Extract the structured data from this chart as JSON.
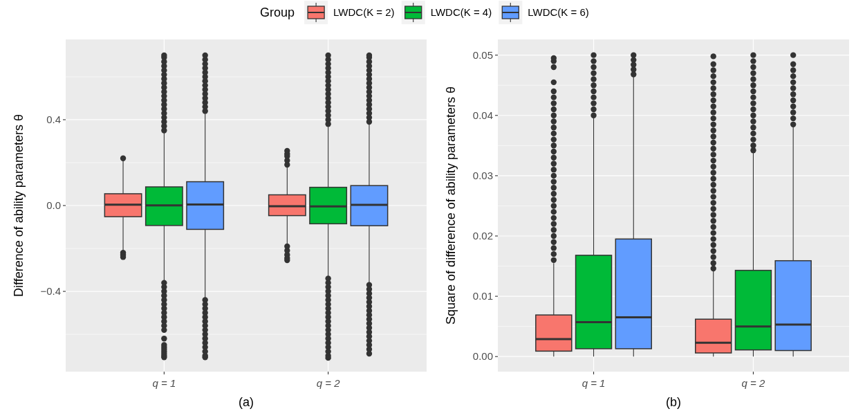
{
  "chart_data": [
    {
      "type": "box",
      "xlabel": "(a)",
      "ylabel": "Difference of ability parameters θ",
      "legend": "top",
      "legend_title": "Group",
      "grid": true,
      "categories": [
        "q = 1",
        "q = 2"
      ],
      "ylim": [
        -0.774,
        0.774
      ],
      "yticks": [
        -0.4,
        {
          "value": 0,
          "label": "0.0"
        },
        0.4
      ],
      "series": [
        {
          "name": "LWDC(K = 2)",
          "color": "#f8766d",
          "boxes": [
            {
              "low": -0.21,
              "q1": -0.052,
              "median": 0.004,
              "q3": 0.055,
              "high": 0.21,
              "outliers": [
                0.22,
                -0.22,
                -0.23,
                -0.24
              ]
            },
            {
              "low": -0.185,
              "q1": -0.047,
              "median": -0.003,
              "q3": 0.05,
              "high": 0.18,
              "outliers": [
                0.19,
                0.21,
                0.23,
                0.24,
                0.255,
                -0.19,
                -0.21,
                -0.23,
                -0.245,
                -0.255
              ]
            }
          ]
        },
        {
          "name": "LWDC(K = 4)",
          "color": "#00ba38",
          "boxes": [
            {
              "low": -0.357,
              "q1": -0.093,
              "median": 0.001,
              "q3": 0.087,
              "high": 0.344,
              "outliers": [
                0.35,
                0.37,
                0.39,
                0.41,
                0.43,
                0.45,
                0.47,
                0.49,
                0.51,
                0.53,
                0.55,
                0.57,
                0.59,
                0.61,
                0.63,
                0.65,
                0.67,
                0.69,
                0.7,
                -0.36,
                -0.38,
                -0.4,
                -0.42,
                -0.44,
                -0.46,
                -0.48,
                -0.5,
                -0.52,
                -0.54,
                -0.56,
                -0.58,
                -0.62,
                -0.65,
                -0.66,
                -0.67,
                -0.68,
                -0.69,
                -0.7,
                -0.707
              ]
            },
            {
              "low": -0.338,
              "q1": -0.085,
              "median": -0.004,
              "q3": 0.085,
              "high": 0.37,
              "outliers": [
                0.38,
                0.4,
                0.42,
                0.44,
                0.46,
                0.48,
                0.5,
                0.52,
                0.54,
                0.56,
                0.58,
                0.6,
                0.62,
                0.64,
                0.66,
                0.68,
                0.7,
                -0.34,
                -0.36,
                -0.38,
                -0.4,
                -0.42,
                -0.44,
                -0.46,
                -0.48,
                -0.5,
                -0.52,
                -0.54,
                -0.56,
                -0.58,
                -0.6,
                -0.62,
                -0.64,
                -0.66,
                -0.68,
                -0.7,
                -0.71
              ]
            }
          ]
        },
        {
          "name": "LWDC(K = 6)",
          "color": "#619cff",
          "boxes": [
            {
              "low": -0.433,
              "q1": -0.111,
              "median": 0.005,
              "q3": 0.111,
              "high": 0.427,
              "outliers": [
                0.44,
                0.46,
                0.48,
                0.5,
                0.52,
                0.54,
                0.56,
                0.58,
                0.6,
                0.62,
                0.64,
                0.66,
                0.68,
                0.7,
                -0.44,
                -0.46,
                -0.48,
                -0.5,
                -0.52,
                -0.54,
                -0.56,
                -0.58,
                -0.6,
                -0.62,
                -0.64,
                -0.66,
                -0.68,
                -0.7,
                -0.707
              ]
            },
            {
              "low": -0.369,
              "q1": -0.094,
              "median": 0.003,
              "q3": 0.093,
              "high": 0.389,
              "outliers": [
                0.39,
                0.41,
                0.43,
                0.45,
                0.47,
                0.49,
                0.51,
                0.53,
                0.55,
                0.57,
                0.59,
                0.61,
                0.63,
                0.65,
                0.67,
                0.69,
                0.7,
                -0.37,
                -0.39,
                -0.41,
                -0.43,
                -0.45,
                -0.47,
                -0.49,
                -0.51,
                -0.53,
                -0.55,
                -0.57,
                -0.59,
                -0.61,
                -0.63,
                -0.65,
                -0.67,
                -0.69
              ]
            }
          ]
        }
      ]
    },
    {
      "type": "box",
      "xlabel": "(b)",
      "ylabel": "Square of difference of ability parameters θ",
      "grid": true,
      "categories": [
        "q = 1",
        "q = 2"
      ],
      "ylim": [
        -0.0025,
        0.0526
      ],
      "yticks": [
        {
          "value": 0,
          "label": "0.00"
        },
        0.01,
        0.02,
        0.03,
        0.04,
        0.05
      ],
      "series": [
        {
          "color": "#f8766d",
          "boxes": [
            {
              "low": 0,
              "q1": 0.0009,
              "median": 0.0029,
              "q3": 0.0069,
              "high": 0.0155,
              "outliers": [
                0.016,
                0.017,
                0.018,
                0.019,
                0.02,
                0.021,
                0.022,
                0.023,
                0.024,
                0.025,
                0.026,
                0.027,
                0.028,
                0.029,
                0.03,
                0.031,
                0.032,
                0.033,
                0.034,
                0.035,
                0.036,
                0.037,
                0.038,
                0.039,
                0.04,
                0.041,
                0.042,
                0.043,
                0.044,
                0.0455,
                0.048,
                0.049,
                0.0495
              ]
            },
            {
              "low": 0,
              "q1": 0.0006,
              "median": 0.0023,
              "q3": 0.0062,
              "high": 0.0144,
              "outliers": [
                0.0146,
                0.0155,
                0.0165,
                0.0175,
                0.0185,
                0.0195,
                0.0205,
                0.0215,
                0.0225,
                0.0235,
                0.0245,
                0.0255,
                0.0265,
                0.0275,
                0.0285,
                0.0295,
                0.0305,
                0.0315,
                0.0325,
                0.0335,
                0.0345,
                0.0355,
                0.0365,
                0.0375,
                0.0385,
                0.0395,
                0.0405,
                0.0415,
                0.0425,
                0.0435,
                0.0445,
                0.0455,
                0.0465,
                0.0475,
                0.0485,
                0.0498
              ]
            }
          ]
        },
        {
          "color": "#00ba38",
          "boxes": [
            {
              "low": 0,
              "q1": 0.0013,
              "median": 0.0057,
              "q3": 0.0168,
              "high": 0.0398,
              "outliers": [
                0.04,
                0.041,
                0.042,
                0.043,
                0.044,
                0.045,
                0.046,
                0.047,
                0.048,
                0.049,
                0.05
              ]
            },
            {
              "low": 0,
              "q1": 0.0011,
              "median": 0.005,
              "q3": 0.0143,
              "high": 0.0339,
              "outliers": [
                0.0342,
                0.035,
                0.036,
                0.037,
                0.038,
                0.039,
                0.04,
                0.041,
                0.042,
                0.043,
                0.044,
                0.045,
                0.046,
                0.047,
                0.048,
                0.049,
                0.05
              ]
            }
          ]
        },
        {
          "color": "#619cff",
          "boxes": [
            {
              "low": 0,
              "q1": 0.0013,
              "median": 0.0065,
              "q3": 0.0195,
              "high": 0.0464,
              "outliers": [
                0.0468,
                0.0476,
                0.0484,
                0.0492,
                0.05
              ]
            },
            {
              "low": 0,
              "q1": 0.001,
              "median": 0.0053,
              "q3": 0.0159,
              "high": 0.0382,
              "outliers": [
                0.0385,
                0.0395,
                0.0405,
                0.0415,
                0.0425,
                0.0435,
                0.0445,
                0.0455,
                0.0465,
                0.0475,
                0.0485,
                0.05
              ]
            }
          ]
        }
      ]
    }
  ]
}
